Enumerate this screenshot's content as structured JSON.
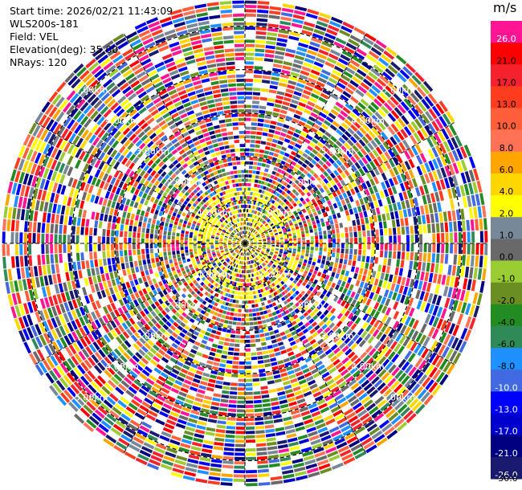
{
  "info": {
    "start_time": "Start time: 2026/02/21 11:43:09",
    "station": "WLS200s-181",
    "field": "Field: VEL",
    "elevation": "Elevation(deg): 35.00",
    "nrays": "NRays: 120"
  },
  "colorbar": {
    "unit": "m/s",
    "levels": [
      {
        "label": "26.0",
        "color": "#ff1493"
      },
      {
        "label": "21.0",
        "color": "#ff0000"
      },
      {
        "label": "17.0",
        "color": "#f5222d"
      },
      {
        "label": "13.0",
        "color": "#ff3c1e"
      },
      {
        "label": "10.0",
        "color": "#ff5e3a"
      },
      {
        "label": "8.0",
        "color": "#ff7256"
      },
      {
        "label": "6.0",
        "color": "#ffa500"
      },
      {
        "label": "4.0",
        "color": "#ffd700"
      },
      {
        "label": "2.0",
        "color": "#ffff00"
      },
      {
        "label": "1.0",
        "color": "#778899"
      },
      {
        "label": "0.0",
        "color": "#696969"
      },
      {
        "label": "-1.0",
        "color": "#9acd32"
      },
      {
        "label": "-2.0",
        "color": "#6b8e23"
      },
      {
        "label": "-4.0",
        "color": "#228b22"
      },
      {
        "label": "-6.0",
        "color": "#2e8b57"
      },
      {
        "label": "-8.0",
        "color": "#1e90ff"
      },
      {
        "label": "-10.0",
        "color": "#4169e1"
      },
      {
        "label": "-13.0",
        "color": "#0000ff"
      },
      {
        "label": "-17.0",
        "color": "#0000cd"
      },
      {
        "label": "-21.0",
        "color": "#000080"
      },
      {
        "label": "-26.0",
        "color": "#191970"
      }
    ],
    "bottom_label": "-30.0"
  },
  "chart_data": {
    "type": "heatmap",
    "projection": "polar",
    "field": "VEL",
    "units": "m/s",
    "nrays": 120,
    "range_rings_km": [
      1.0,
      2.0,
      3.0,
      4.0,
      5.0
    ],
    "ring_labels": [
      "1.00km",
      "2.00km",
      "3.00km",
      "4.00km",
      "5.00km"
    ],
    "max_range_km": 5.6
  }
}
